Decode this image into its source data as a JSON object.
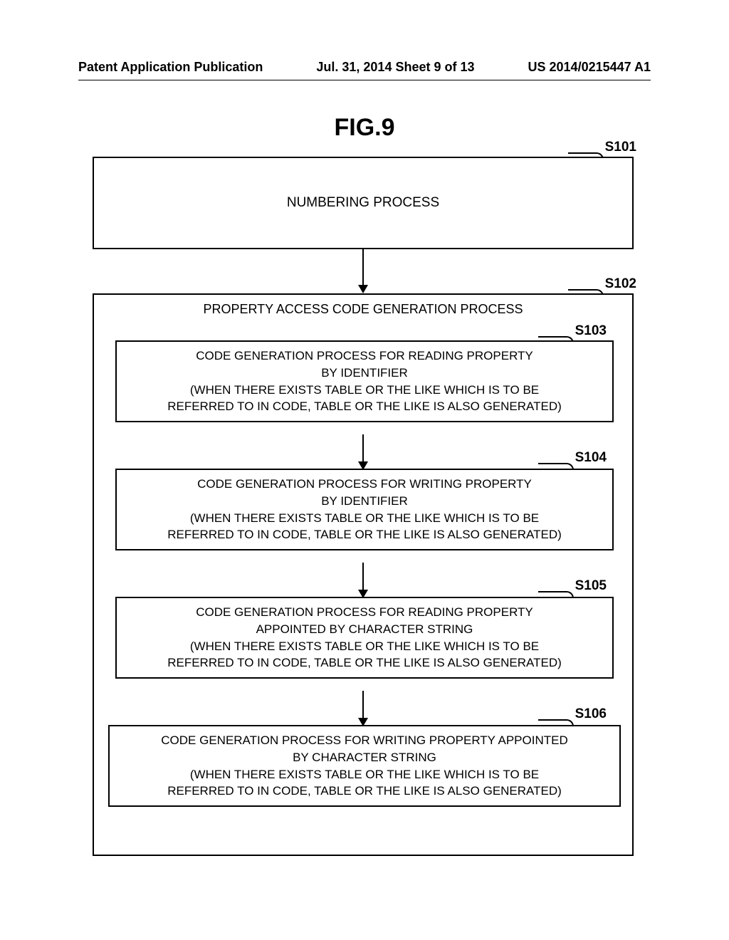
{
  "header": {
    "left": "Patent Application Publication",
    "center": "Jul. 31, 2014  Sheet 9 of 13",
    "right": "US 2014/0215447 A1"
  },
  "figure": {
    "title": "FIG.9",
    "type": "flowchart",
    "background_color": "#ffffff",
    "border_color": "#000000",
    "text_color": "#000000",
    "font_family": "Arial",
    "title_fontsize": 34,
    "box_fontsize": 17,
    "label_fontsize": 19,
    "border_width": 2,
    "arrow_head_size": 12,
    "steps": [
      {
        "id": "S101",
        "label": "S101",
        "text": "NUMBERING PROCESS"
      },
      {
        "id": "S102",
        "label": "S102",
        "text": "PROPERTY ACCESS CODE GENERATION PROCESS",
        "container": true
      },
      {
        "id": "S103",
        "label": "S103",
        "line1": "CODE GENERATION PROCESS FOR READING PROPERTY",
        "line2": "BY IDENTIFIER",
        "line3": "(WHEN THERE EXISTS TABLE OR THE LIKE WHICH IS TO BE",
        "line4": "REFERRED TO IN CODE, TABLE OR THE LIKE IS ALSO GENERATED)"
      },
      {
        "id": "S104",
        "label": "S104",
        "line1": "CODE GENERATION PROCESS FOR WRITING PROPERTY",
        "line2": "BY IDENTIFIER",
        "line3": "(WHEN THERE EXISTS TABLE OR THE LIKE WHICH IS TO BE",
        "line4": "REFERRED TO IN CODE, TABLE OR THE LIKE IS ALSO GENERATED)"
      },
      {
        "id": "S105",
        "label": "S105",
        "line1": "CODE GENERATION PROCESS FOR READING PROPERTY",
        "line2": "APPOINTED BY CHARACTER STRING",
        "line3": "(WHEN THERE EXISTS TABLE OR THE LIKE WHICH IS TO BE",
        "line4": "REFERRED TO IN CODE, TABLE OR THE LIKE IS ALSO GENERATED)"
      },
      {
        "id": "S106",
        "label": "S106",
        "line1": "CODE GENERATION PROCESS FOR WRITING PROPERTY APPOINTED",
        "line2": "BY CHARACTER STRING",
        "line3": "(WHEN THERE EXISTS TABLE OR THE LIKE WHICH IS TO BE",
        "line4": "REFERRED TO IN CODE, TABLE OR THE LIKE IS ALSO GENERATED)"
      }
    ],
    "edges": [
      {
        "from": "S101",
        "to": "S102"
      },
      {
        "from": "S103",
        "to": "S104"
      },
      {
        "from": "S104",
        "to": "S105"
      },
      {
        "from": "S105",
        "to": "S106"
      }
    ]
  }
}
